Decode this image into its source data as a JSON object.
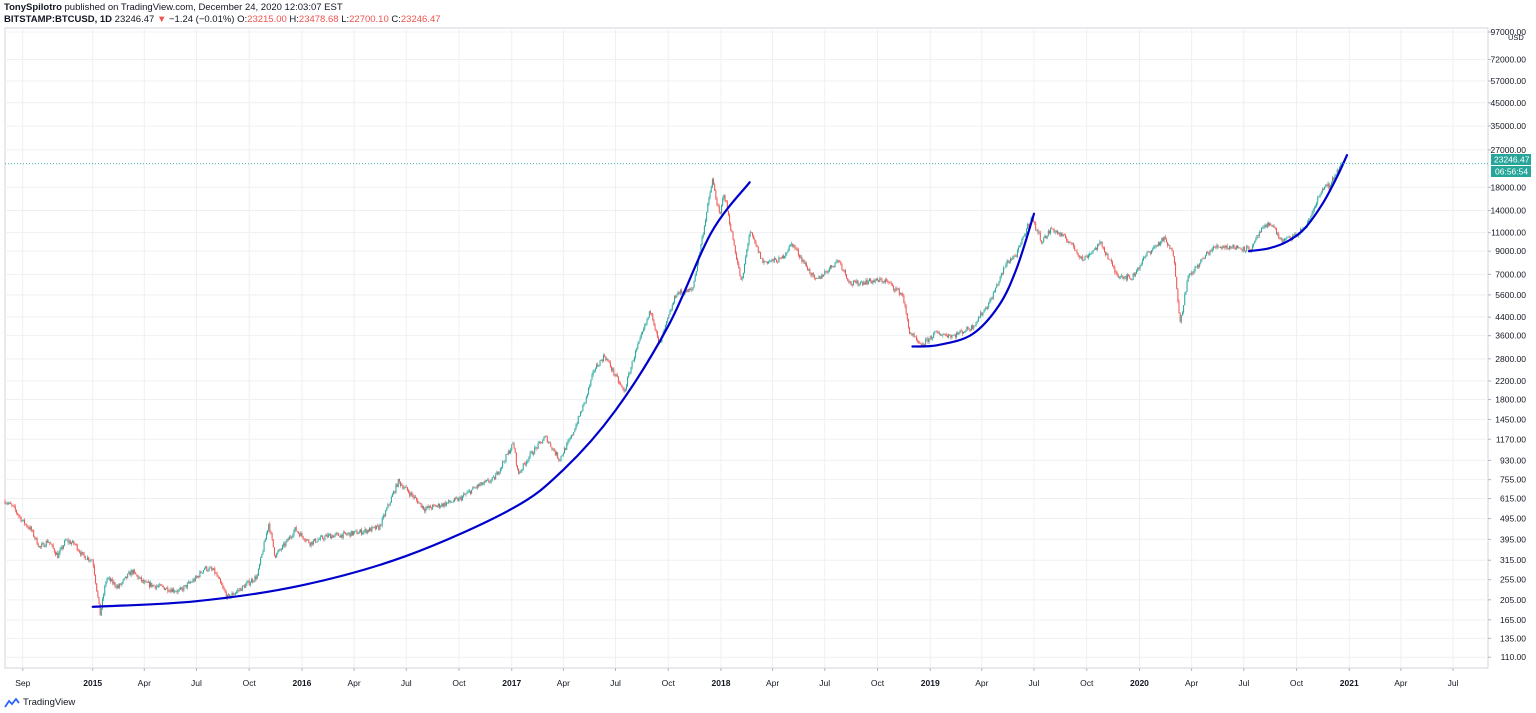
{
  "header": {
    "author": "TonySpilotro",
    "published_text": "published on TradingView.com, December 24, 2020 12:03:07 EST",
    "symbol": "BITSTAMP:BTCUSD, 1D",
    "last": "23246.47",
    "change": "−1.24 (−0.01%)",
    "o_label": "O:",
    "o_value": "23215.00",
    "h_label": "H:",
    "h_value": "23478.68",
    "l_label": "L:",
    "l_value": "22700.10",
    "c_label": "C:",
    "c_value": "23246.47"
  },
  "price_axis": {
    "currency": "USD",
    "last_price_badge": "23246.47",
    "countdown_badge": "06:56:54",
    "badge_color": "#26a69a"
  },
  "footer": {
    "brand": "TradingView"
  },
  "colors": {
    "up": "#26a69a",
    "down": "#ef5350",
    "trend": "#0000cc",
    "grid": "#eef0f3"
  },
  "chart_data": {
    "type": "line",
    "scale": "log",
    "ylim": [
      100,
      97000
    ],
    "y_ticks": [
      110,
      135,
      165,
      205,
      255,
      315,
      395,
      495,
      615,
      755,
      930,
      1170,
      1450,
      1800,
      2200,
      2800,
      3600,
      4400,
      5600,
      7000,
      9000,
      11000,
      14000,
      18000,
      27000,
      35000,
      45000,
      57000,
      72000,
      97000
    ],
    "y_tick_labels": [
      "110.00",
      "135.00",
      "165.00",
      "205.00",
      "255.00",
      "315.00",
      "395.00",
      "495.00",
      "615.00",
      "755.00",
      "930.00",
      "1170.00",
      "1450.00",
      "1800.00",
      "2200.00",
      "2800.00",
      "3600.00",
      "4400.00",
      "5600.00",
      "7000.00",
      "9000.00",
      "11000.00",
      "14000.00",
      "18000.00",
      "27000.00",
      "35000.00",
      "45000.00",
      "57000.00",
      "72000.00",
      "97000.00"
    ],
    "xlim": [
      "2014-08-01",
      "2021-08-31"
    ],
    "x_ticks": [
      "2014-09-01",
      "2015-01-01",
      "2015-04-01",
      "2015-07-01",
      "2015-10-01",
      "2016-01-01",
      "2016-04-01",
      "2016-07-01",
      "2016-10-01",
      "2017-01-01",
      "2017-04-01",
      "2017-07-01",
      "2017-10-01",
      "2018-01-01",
      "2018-04-01",
      "2018-07-01",
      "2018-10-01",
      "2019-01-01",
      "2019-04-01",
      "2019-07-01",
      "2019-10-01",
      "2020-01-01",
      "2020-04-01",
      "2020-07-01",
      "2020-10-01",
      "2021-01-01",
      "2021-04-01",
      "2021-07-01"
    ],
    "x_tick_labels": [
      "Sep",
      "2015",
      "Apr",
      "Jul",
      "Oct",
      "2016",
      "Apr",
      "Jul",
      "Oct",
      "2017",
      "Apr",
      "Jul",
      "Oct",
      "2018",
      "Apr",
      "Jul",
      "Oct",
      "2019",
      "Apr",
      "Jul",
      "Oct",
      "2020",
      "Apr",
      "Jul",
      "Oct",
      "2021",
      "Apr",
      "Jul"
    ],
    "x_tick_bold": [
      false,
      true,
      false,
      false,
      false,
      true,
      false,
      false,
      false,
      true,
      false,
      false,
      false,
      true,
      false,
      false,
      false,
      true,
      false,
      false,
      false,
      true,
      false,
      false,
      false,
      true,
      false,
      false
    ],
    "last_price": 23246.47,
    "series": [
      {
        "type": "candlestick-approx",
        "points": [
          [
            "2014-08-01",
            600
          ],
          [
            "2014-08-15",
            560
          ],
          [
            "2014-09-01",
            480
          ],
          [
            "2014-09-15",
            440
          ],
          [
            "2014-10-01",
            360
          ],
          [
            "2014-10-15",
            390
          ],
          [
            "2014-11-01",
            330
          ],
          [
            "2014-11-15",
            390
          ],
          [
            "2014-12-01",
            375
          ],
          [
            "2014-12-15",
            330
          ],
          [
            "2015-01-01",
            315
          ],
          [
            "2015-01-14",
            175
          ],
          [
            "2015-01-25",
            260
          ],
          [
            "2015-02-15",
            235
          ],
          [
            "2015-03-10",
            280
          ],
          [
            "2015-04-01",
            245
          ],
          [
            "2015-05-01",
            235
          ],
          [
            "2015-06-01",
            225
          ],
          [
            "2015-07-01",
            260
          ],
          [
            "2015-07-15",
            290
          ],
          [
            "2015-08-01",
            280
          ],
          [
            "2015-08-24",
            210
          ],
          [
            "2015-09-15",
            230
          ],
          [
            "2015-10-15",
            265
          ],
          [
            "2015-11-04",
            470
          ],
          [
            "2015-11-15",
            330
          ],
          [
            "2015-12-01",
            370
          ],
          [
            "2015-12-20",
            440
          ],
          [
            "2016-01-15",
            380
          ],
          [
            "2016-02-15",
            410
          ],
          [
            "2016-03-15",
            415
          ],
          [
            "2016-04-15",
            430
          ],
          [
            "2016-05-15",
            450
          ],
          [
            "2016-06-17",
            740
          ],
          [
            "2016-07-01",
            680
          ],
          [
            "2016-08-02",
            550
          ],
          [
            "2016-09-01",
            575
          ],
          [
            "2016-10-01",
            610
          ],
          [
            "2016-11-01",
            700
          ],
          [
            "2016-12-01",
            760
          ],
          [
            "2017-01-04",
            1120
          ],
          [
            "2017-01-12",
            800
          ],
          [
            "2017-02-01",
            980
          ],
          [
            "2017-03-01",
            1200
          ],
          [
            "2017-03-25",
            940
          ],
          [
            "2017-04-15",
            1200
          ],
          [
            "2017-05-10",
            1800
          ],
          [
            "2017-05-25",
            2500
          ],
          [
            "2017-06-12",
            2900
          ],
          [
            "2017-07-16",
            1950
          ],
          [
            "2017-08-01",
            2800
          ],
          [
            "2017-09-01",
            4800
          ],
          [
            "2017-09-15",
            3200
          ],
          [
            "2017-10-15",
            5700
          ],
          [
            "2017-11-12",
            5900
          ],
          [
            "2017-11-25",
            9000
          ],
          [
            "2017-12-17",
            19500
          ],
          [
            "2017-12-30",
            13000
          ],
          [
            "2018-01-06",
            17000
          ],
          [
            "2018-02-06",
            6300
          ],
          [
            "2018-02-20",
            11200
          ],
          [
            "2018-03-15",
            8000
          ],
          [
            "2018-04-15",
            8200
          ],
          [
            "2018-05-05",
            9800
          ],
          [
            "2018-06-15",
            6500
          ],
          [
            "2018-07-25",
            8200
          ],
          [
            "2018-08-15",
            6300
          ],
          [
            "2018-09-15",
            6500
          ],
          [
            "2018-10-15",
            6550
          ],
          [
            "2018-11-14",
            5600
          ],
          [
            "2018-11-25",
            3800
          ],
          [
            "2018-12-15",
            3200
          ],
          [
            "2019-01-10",
            3700
          ],
          [
            "2019-02-10",
            3600
          ],
          [
            "2019-03-15",
            3950
          ],
          [
            "2019-04-15",
            5200
          ],
          [
            "2019-05-15",
            8000
          ],
          [
            "2019-06-01",
            8700
          ],
          [
            "2019-06-26",
            13000
          ],
          [
            "2019-07-15",
            10000
          ],
          [
            "2019-08-01",
            11500
          ],
          [
            "2019-09-01",
            10000
          ],
          [
            "2019-09-24",
            8200
          ],
          [
            "2019-10-26",
            9800
          ],
          [
            "2019-11-22",
            7000
          ],
          [
            "2019-12-18",
            6700
          ],
          [
            "2020-01-15",
            8800
          ],
          [
            "2020-02-13",
            10300
          ],
          [
            "2020-03-01",
            8600
          ],
          [
            "2020-03-12",
            4100
          ],
          [
            "2020-03-25",
            6700
          ],
          [
            "2020-04-30",
            8900
          ],
          [
            "2020-05-15",
            9500
          ],
          [
            "2020-06-15",
            9400
          ],
          [
            "2020-07-15",
            9200
          ],
          [
            "2020-07-28",
            11000
          ],
          [
            "2020-08-17",
            12300
          ],
          [
            "2020-09-05",
            10000
          ],
          [
            "2020-10-01",
            10700
          ],
          [
            "2020-10-20",
            12000
          ],
          [
            "2020-11-05",
            15500
          ],
          [
            "2020-11-24",
            19000
          ],
          [
            "2020-11-27",
            17000
          ],
          [
            "2020-12-01",
            19000
          ],
          [
            "2020-12-17",
            22800
          ],
          [
            "2020-12-24",
            23246
          ]
        ]
      },
      {
        "type": "trendline",
        "points": [
          [
            "2015-01-01",
            190
          ],
          [
            "2015-07-01",
            202
          ],
          [
            "2016-01-01",
            240
          ],
          [
            "2016-07-01",
            330
          ],
          [
            "2017-01-01",
            550
          ],
          [
            "2017-04-01",
            840
          ],
          [
            "2017-07-01",
            1600
          ],
          [
            "2017-10-01",
            4000
          ],
          [
            "2017-12-15",
            11000
          ],
          [
            "2018-02-20",
            19000
          ]
        ]
      },
      {
        "type": "trendline",
        "points": [
          [
            "2018-12-01",
            3200
          ],
          [
            "2019-01-15",
            3250
          ],
          [
            "2019-03-15",
            3650
          ],
          [
            "2019-05-01",
            5000
          ],
          [
            "2019-06-01",
            7500
          ],
          [
            "2019-07-01",
            13500
          ]
        ]
      },
      {
        "type": "trendline",
        "points": [
          [
            "2020-07-10",
            9000
          ],
          [
            "2020-08-15",
            9300
          ],
          [
            "2020-09-15",
            10000
          ],
          [
            "2020-10-15",
            11500
          ],
          [
            "2020-11-15",
            15000
          ],
          [
            "2020-12-10",
            20000
          ],
          [
            "2020-12-28",
            25500
          ]
        ]
      }
    ]
  }
}
